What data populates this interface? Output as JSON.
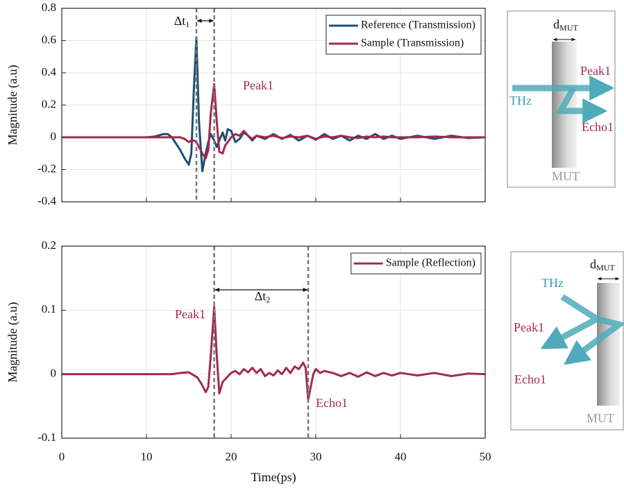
{
  "chart_data": [
    {
      "type": "line",
      "ylabel": "Magnitude (a.u)",
      "x": [
        0,
        5,
        10,
        11,
        12,
        12.5,
        13,
        14,
        14.5,
        15,
        15.3,
        15.6,
        15.9,
        16.2,
        16.6,
        17,
        17.3,
        17.6,
        18,
        18.3,
        18.6,
        19,
        19.3,
        19.6,
        20,
        20.5,
        21,
        21.5,
        22,
        22.5,
        23,
        24,
        25,
        26,
        27,
        28,
        29,
        30,
        31,
        32,
        33,
        34,
        35,
        36,
        37,
        38,
        39,
        40,
        42,
        44,
        46,
        48,
        50
      ],
      "series": [
        {
          "name": "Reference (Transmission)",
          "color": "#1f4e72",
          "values": [
            0,
            0,
            0,
            0.005,
            0.02,
            0.02,
            0,
            -0.08,
            -0.13,
            -0.17,
            -0.1,
            0.3,
            0.62,
            0.1,
            -0.21,
            -0.1,
            -0.03,
            0.02,
            -0.02,
            -0.06,
            -0.02,
            0.03,
            -0.02,
            0.05,
            0.04,
            -0.03,
            -0.01,
            0.03,
            0.01,
            -0.02,
            0.01,
            -0.01,
            0.02,
            -0.01,
            0.015,
            -0.02,
            0.01,
            -0.015,
            0.02,
            -0.01,
            0.01,
            -0.02,
            0.01,
            -0.01,
            0.02,
            -0.01,
            0.01,
            -0.01,
            0.01,
            -0.01,
            0.01,
            -0.005,
            0
          ]
        },
        {
          "name": "Sample (Transmission)",
          "color": "#a3294d",
          "values": [
            0,
            0,
            0,
            0,
            0,
            0,
            0,
            0,
            -0.01,
            -0.03,
            -0.02,
            -0.02,
            -0.03,
            -0.06,
            -0.1,
            -0.13,
            -0.08,
            0.15,
            0.33,
            0.1,
            -0.09,
            -0.1,
            -0.05,
            -0.03,
            0,
            0.02,
            0.01,
            0.04,
            0.01,
            -0.01,
            0.01,
            0,
            0.01,
            -0.005,
            0.005,
            0,
            0.01,
            -0.01,
            0.005,
            0,
            0.01,
            0,
            -0.005,
            0.005,
            0,
            0.005,
            0,
            0,
            0,
            0.005,
            0,
            0,
            0
          ]
        }
      ],
      "xlim": [
        0,
        50
      ],
      "xticks": [
        0,
        10,
        20,
        30,
        40,
        50
      ],
      "xtick_labels": false,
      "ylim": [
        -0.4,
        0.8
      ],
      "yticks": [
        -0.4,
        -0.2,
        0,
        0.2,
        0.4,
        0.6,
        0.8
      ],
      "grid": true,
      "legend": "upper right",
      "vlines": [
        15.9,
        18
      ],
      "annotations": [
        {
          "text": "Δt",
          "sub": "1",
          "color": "#111111"
        },
        {
          "text": "Peak1",
          "color": "#a3294d"
        }
      ]
    },
    {
      "type": "line",
      "ylabel": "Magnitude (a.u)",
      "xlabel": "Time(ps)",
      "x": [
        0,
        5,
        10,
        12,
        13,
        14,
        15,
        16,
        16.5,
        17,
        17.3,
        17.6,
        18,
        18.3,
        18.6,
        19,
        19.5,
        20,
        20.5,
        21,
        21.5,
        22,
        22.5,
        23,
        23.5,
        24,
        24.5,
        25,
        25.5,
        26,
        26.5,
        27,
        27.5,
        28,
        28.5,
        28.8,
        29.1,
        29.4,
        29.7,
        30,
        30.5,
        31,
        32,
        33,
        34,
        35,
        36,
        37,
        38,
        39,
        40,
        42,
        44,
        46,
        48,
        50
      ],
      "series": [
        {
          "name": "Sample (Reflection)",
          "color": "#a3294d",
          "values": [
            0,
            0,
            0,
            0,
            0,
            0.002,
            0.003,
            -0.005,
            -0.015,
            -0.028,
            -0.02,
            0.03,
            0.105,
            0.03,
            -0.03,
            -0.012,
            -0.005,
            0.002,
            0.005,
            0,
            0.008,
            0.003,
            0.01,
            0.002,
            0.008,
            -0.003,
            0.002,
            -0.002,
            0.006,
            0,
            0.01,
            0.002,
            0.012,
            0.008,
            0.018,
            0.01,
            -0.04,
            -0.02,
            0,
            0.008,
            0.002,
            0.005,
            0.002,
            -0.003,
            0.002,
            -0.004,
            0.003,
            -0.003,
            0.002,
            -0.002,
            0.002,
            -0.002,
            0.002,
            -0.003,
            0.001,
            0
          ]
        }
      ],
      "xlim": [
        0,
        50
      ],
      "xticks": [
        0,
        10,
        20,
        30,
        40,
        50
      ],
      "ylim": [
        -0.1,
        0.2
      ],
      "yticks": [
        -0.1,
        0,
        0.1,
        0.2
      ],
      "grid": true,
      "legend": "upper right",
      "vlines": [
        18,
        29.1
      ],
      "annotations": [
        {
          "text": "Δt",
          "sub": "2",
          "color": "#111111"
        },
        {
          "text": "Peak1",
          "color": "#a3294d"
        },
        {
          "text": "Echo1",
          "color": "#a3294d"
        }
      ]
    }
  ],
  "diagrams": [
    {
      "source": "THz",
      "peak": "Peak1",
      "echo": "Echo1",
      "material": "MUT",
      "thickness": "d",
      "thickness_sub": "MUT"
    },
    {
      "source": "THz",
      "peak": "Peak1",
      "echo": "Echo1",
      "material": "MUT",
      "thickness": "d",
      "thickness_sub": "MUT"
    }
  ]
}
